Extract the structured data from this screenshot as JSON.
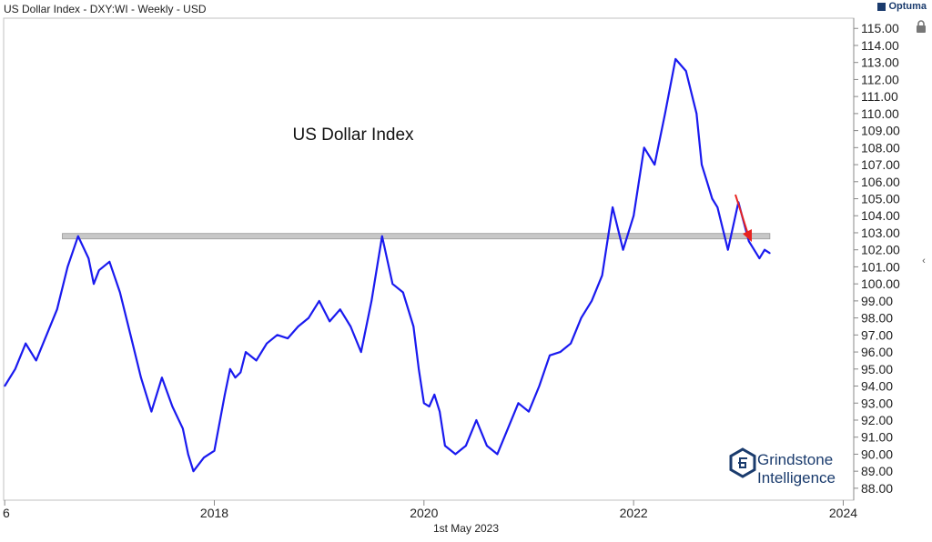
{
  "header": {
    "title": "US Dollar Index - DXY:WI - Weekly - USD",
    "brand": "Optuma"
  },
  "footer": {
    "date": "1st May 2023"
  },
  "watermark": {
    "line1": "Grindstone",
    "line2": "Intelligence"
  },
  "icons": {
    "lock": "lock-icon",
    "scroll": "chevron-left-icon"
  },
  "colors": {
    "line": "#1a1aef",
    "resistance": "#c8c8c8",
    "arrow": "#e8231f",
    "brand": "#1a3b6d"
  },
  "chart_data": {
    "type": "line",
    "title": "US Dollar Index",
    "xlabel": "",
    "ylabel": "",
    "x_ticks": [
      "6",
      "2018",
      "2020",
      "2022",
      "2024"
    ],
    "ylim": [
      88,
      115
    ],
    "y_ticks": [
      "115.00",
      "114.00",
      "113.00",
      "112.00",
      "111.00",
      "110.00",
      "109.00",
      "108.00",
      "107.00",
      "106.00",
      "105.00",
      "104.00",
      "103.00",
      "102.00",
      "101.00",
      "100.00",
      "99.00",
      "98.00",
      "97.00",
      "96.00",
      "95.00",
      "94.00",
      "93.00",
      "92.00",
      "91.00",
      "90.00",
      "89.00",
      "88.00"
    ],
    "resistance_level": 102.8,
    "series": [
      {
        "name": "DXY",
        "x": [
          2016.0,
          2016.1,
          2016.2,
          2016.3,
          2016.4,
          2016.5,
          2016.6,
          2016.7,
          2016.8,
          2016.85,
          2016.9,
          2017.0,
          2017.1,
          2017.2,
          2017.3,
          2017.4,
          2017.5,
          2017.6,
          2017.7,
          2017.75,
          2017.8,
          2017.9,
          2017.95,
          2018.0,
          2018.1,
          2018.15,
          2018.2,
          2018.25,
          2018.3,
          2018.4,
          2018.5,
          2018.6,
          2018.7,
          2018.8,
          2018.9,
          2019.0,
          2019.1,
          2019.2,
          2019.3,
          2019.4,
          2019.5,
          2019.6,
          2019.7,
          2019.8,
          2019.9,
          2019.95,
          2020.0,
          2020.05,
          2020.1,
          2020.15,
          2020.2,
          2020.3,
          2020.4,
          2020.5,
          2020.6,
          2020.7,
          2020.8,
          2020.9,
          2021.0,
          2021.1,
          2021.2,
          2021.3,
          2021.4,
          2021.5,
          2021.6,
          2021.7,
          2021.8,
          2021.9,
          2022.0,
          2022.1,
          2022.2,
          2022.3,
          2022.4,
          2022.5,
          2022.6,
          2022.65,
          2022.7,
          2022.75,
          2022.8,
          2022.9,
          2023.0,
          2023.1,
          2023.2,
          2023.25,
          2023.3
        ],
        "values": [
          94.0,
          95.0,
          96.5,
          95.5,
          97.0,
          98.5,
          101.0,
          102.8,
          101.5,
          100.0,
          100.8,
          101.3,
          99.5,
          97.0,
          94.5,
          92.5,
          94.5,
          92.8,
          91.5,
          90.0,
          89.0,
          89.8,
          90.0,
          90.2,
          93.5,
          95.0,
          94.5,
          94.8,
          96.0,
          95.5,
          96.5,
          97.0,
          96.8,
          97.5,
          98.0,
          99.0,
          97.8,
          98.5,
          97.5,
          96.0,
          99.0,
          102.8,
          100.0,
          99.5,
          97.5,
          95.0,
          93.0,
          92.8,
          93.5,
          92.5,
          90.5,
          90.0,
          90.5,
          92.0,
          90.5,
          90.0,
          91.5,
          93.0,
          92.5,
          94.0,
          95.8,
          96.0,
          96.5,
          98.0,
          99.0,
          100.5,
          104.5,
          102.0,
          104.0,
          108.0,
          107.0,
          110.0,
          113.2,
          112.5,
          110.0,
          107.0,
          106.0,
          105.0,
          104.5,
          102.0,
          104.8,
          102.5,
          101.5,
          102.0,
          101.8
        ]
      }
    ]
  }
}
